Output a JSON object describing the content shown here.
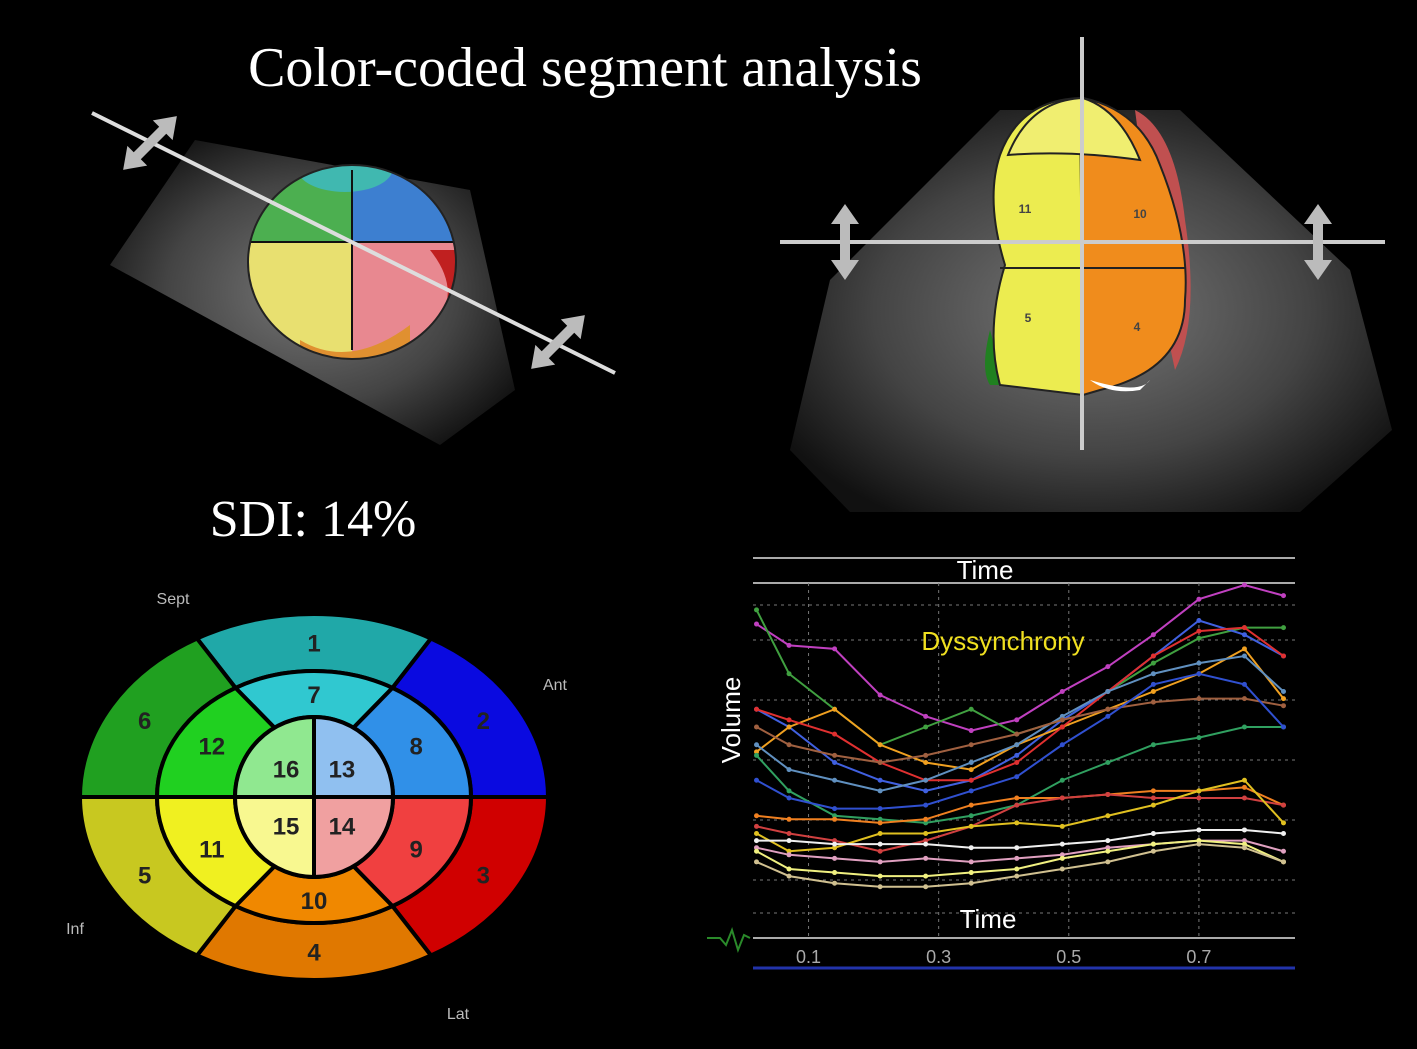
{
  "title": "Color-coded segment analysis",
  "sdi": "SDI: 14%",
  "echo_labels": [
    "11",
    "10",
    "5",
    "4"
  ],
  "bullseye": {
    "segments": [
      {
        "label": "1",
        "color": "#20a8a8"
      },
      {
        "label": "2",
        "color": "#0a0ae0"
      },
      {
        "label": "3",
        "color": "#d00000"
      },
      {
        "label": "4",
        "color": "#e07800"
      },
      {
        "label": "5",
        "color": "#c8c820"
      },
      {
        "label": "6",
        "color": "#20a020"
      },
      {
        "label": "7",
        "color": "#30c8d0"
      },
      {
        "label": "8",
        "color": "#3090e8"
      },
      {
        "label": "9",
        "color": "#f04040"
      },
      {
        "label": "10",
        "color": "#f08800"
      },
      {
        "label": "11",
        "color": "#f0f020"
      },
      {
        "label": "12",
        "color": "#20d020"
      },
      {
        "label": "13",
        "color": "#90c0f0"
      },
      {
        "label": "14",
        "color": "#f0a0a0"
      },
      {
        "label": "15",
        "color": "#f8f890"
      },
      {
        "label": "16",
        "color": "#90e890"
      }
    ],
    "directions": [
      "Sept",
      "Ant",
      "Lat",
      "Inf"
    ]
  },
  "chart_data": {
    "type": "line",
    "title": "Dyssynchrony",
    "x_label_top": "Time",
    "x_label": "Time",
    "y_label": "Volume",
    "x": [
      0.02,
      0.07,
      0.14,
      0.21,
      0.28,
      0.35,
      0.42,
      0.49,
      0.56,
      0.63,
      0.7,
      0.77,
      0.83
    ],
    "xlim": [
      0.01,
      0.84
    ],
    "xticks": [
      0.1,
      0.3,
      0.5,
      0.7
    ],
    "ylim": [
      0,
      100
    ],
    "grid": true,
    "series": [
      {
        "color": "#c040c0",
        "values": [
          89,
          83,
          82,
          69,
          63,
          59,
          62,
          70,
          77,
          86,
          96,
          100,
          97
        ]
      },
      {
        "color": "#40a040",
        "values": [
          93,
          75,
          65,
          55,
          60,
          65,
          58,
          62,
          70,
          78,
          85,
          88,
          88
        ]
      },
      {
        "color": "#4060e0",
        "values": [
          65,
          60,
          50,
          45,
          42,
          45,
          52,
          62,
          70,
          80,
          90,
          86,
          80
        ]
      },
      {
        "color": "#f0a020",
        "values": [
          53,
          60,
          65,
          55,
          50,
          48,
          55,
          60,
          65,
          70,
          75,
          82,
          68
        ]
      },
      {
        "color": "#e03030",
        "values": [
          65,
          62,
          58,
          50,
          45,
          45,
          50,
          60,
          70,
          80,
          87,
          88,
          80
        ]
      },
      {
        "color": "#6090c0",
        "values": [
          55,
          48,
          45,
          42,
          45,
          50,
          55,
          63,
          70,
          75,
          78,
          80,
          70
        ]
      },
      {
        "color": "#a06040",
        "values": [
          60,
          55,
          52,
          50,
          52,
          55,
          58,
          62,
          65,
          67,
          68,
          68,
          66
        ]
      },
      {
        "color": "#30a060",
        "values": [
          52,
          42,
          35,
          34,
          33,
          35,
          38,
          45,
          50,
          55,
          57,
          60,
          60
        ]
      },
      {
        "color": "#3050d0",
        "values": [
          45,
          40,
          37,
          37,
          38,
          42,
          46,
          55,
          63,
          72,
          75,
          72,
          60
        ]
      },
      {
        "color": "#f08020",
        "values": [
          35,
          34,
          34,
          33,
          34,
          38,
          40,
          40,
          41,
          42,
          42,
          43,
          38
        ]
      },
      {
        "color": "#d04040",
        "values": [
          32,
          30,
          28,
          25,
          28,
          32,
          38,
          40,
          41,
          40,
          40,
          40,
          38
        ]
      },
      {
        "color": "#e0c020",
        "values": [
          30,
          25,
          26,
          30,
          30,
          32,
          33,
          32,
          35,
          38,
          42,
          45,
          33
        ]
      },
      {
        "color": "#f0f0f0",
        "values": [
          28,
          28,
          27,
          27,
          27,
          26,
          26,
          27,
          28,
          30,
          31,
          31,
          30
        ]
      },
      {
        "color": "#e0a0c0",
        "values": [
          26,
          24,
          23,
          22,
          23,
          22,
          23,
          24,
          26,
          27,
          28,
          28,
          25
        ]
      },
      {
        "color": "#f0f080",
        "values": [
          25,
          20,
          19,
          18,
          18,
          19,
          20,
          23,
          25,
          27,
          28,
          27,
          22
        ]
      },
      {
        "color": "#d0c090",
        "values": [
          22,
          18,
          16,
          15,
          15,
          16,
          18,
          20,
          22,
          25,
          27,
          26,
          22
        ]
      }
    ]
  }
}
